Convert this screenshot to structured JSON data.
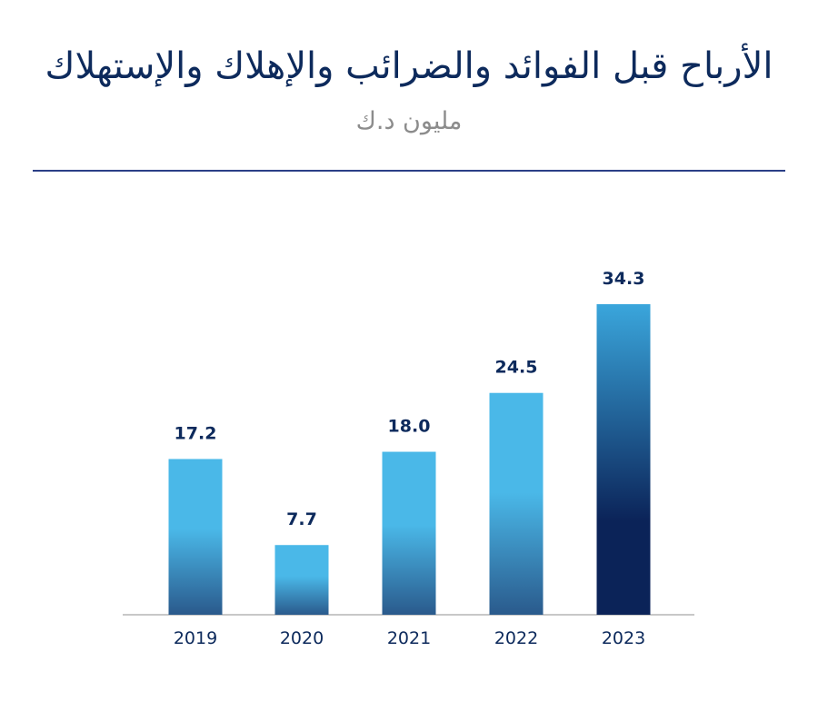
{
  "header": {
    "title": "الأرباح قبل الفوائد والضرائب والإهلاك والإستهلاك",
    "subtitle": "مليون د.ك"
  },
  "chart_data": {
    "type": "bar",
    "title": "الأرباح قبل الفوائد والضرائب والإهلاك والإستهلاك",
    "subtitle": "مليون د.ك",
    "categories": [
      "2019",
      "2020",
      "2021",
      "2022",
      "2023"
    ],
    "values": [
      17.2,
      7.7,
      18.0,
      24.5,
      34.3
    ],
    "value_labels": [
      "17.2",
      "7.7",
      "18.0",
      "24.5",
      "34.3"
    ],
    "xlabel": "",
    "ylabel": "",
    "ylim": [
      0,
      34.3
    ],
    "grid": false,
    "legend": "none"
  },
  "colors": {
    "bar_top": "#4ab8e8",
    "bar_bottom": "#2a5a8c",
    "highlight_top": "#3aa6dc",
    "highlight_bottom": "#0b2358",
    "axis": "#c8c8c8",
    "text": "#0d2a5c"
  }
}
